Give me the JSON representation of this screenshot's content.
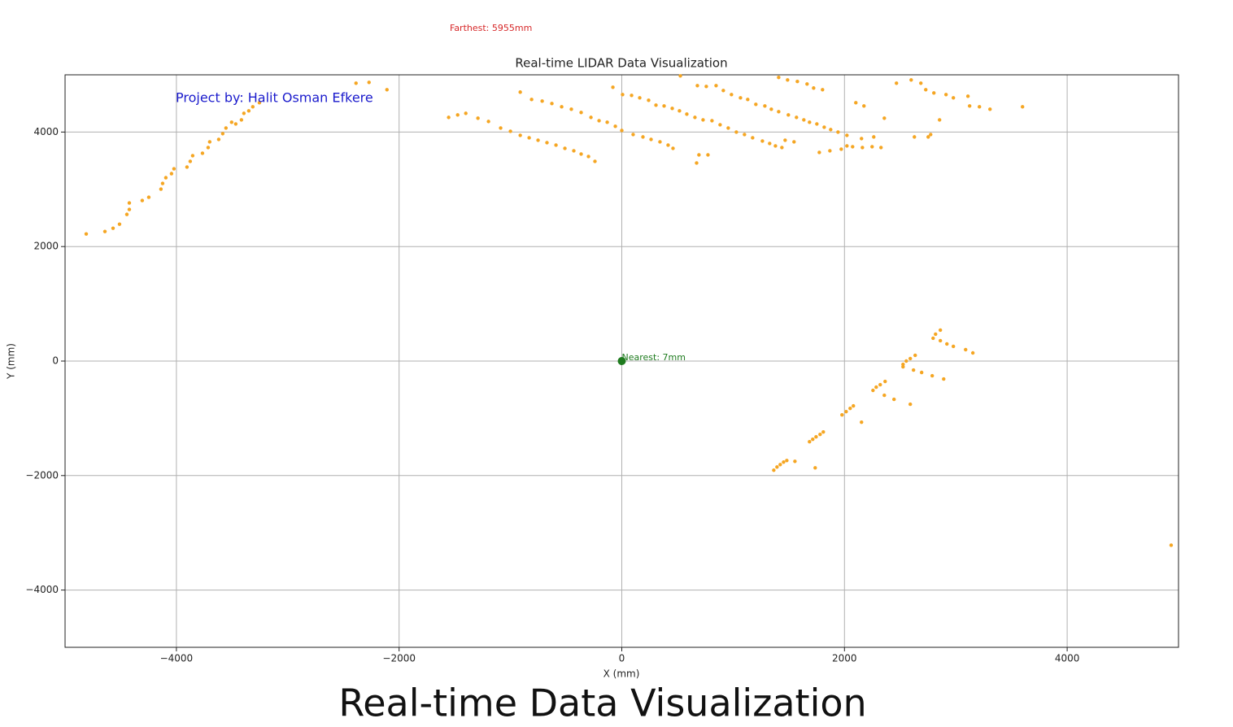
{
  "chart_data": {
    "type": "scatter",
    "title": "Real-time LIDAR Data Visualization",
    "farthest_label": "Farthest: 5955mm",
    "annotation": "Project by: Halit Osman Efkere",
    "xlabel": "X (mm)",
    "ylabel": "Y (mm)",
    "xlim": [
      -5000,
      5000
    ],
    "ylim": [
      -5000,
      5000
    ],
    "xticks": [
      {
        "value": -4000,
        "label": "−4000"
      },
      {
        "value": -2000,
        "label": "−2000"
      },
      0,
      2000,
      4000
    ],
    "yticks": [
      {
        "value": -4000,
        "label": "−4000"
      },
      {
        "value": -2000,
        "label": "−2000"
      },
      0,
      2000,
      4000
    ],
    "grid": true,
    "points": {
      "color": "#f5a623",
      "x": [
        -4810,
        -4642,
        -4569,
        -4511,
        -4445,
        -4423,
        -4423,
        -4307,
        -4248,
        -4139,
        -4124,
        -4095,
        -4044,
        -4022,
        -3905,
        -3876,
        -3854,
        -3766,
        -3715,
        -3701,
        -3620,
        -3584,
        -3555,
        -3504,
        -3467,
        -3416,
        -3394,
        -3350,
        -3314,
        -3255,
        -2387,
        -2270,
        -2109,
        -1555,
        -1474,
        -1401,
        -1292,
        -1197,
        -1088,
        -1000,
        -912,
        -832,
        -752,
        -672,
        -591,
        -511,
        -431,
        -365,
        -299,
        -241,
        -912,
        -810,
        -715,
        -628,
        -540,
        -453,
        -365,
        -277,
        -204,
        -131,
        -80,
        -58,
        0,
        7,
        88,
        102,
        161,
        190,
        241,
        263,
        307,
        343,
        380,
        416,
        453,
        460,
        518,
        526,
        584,
        657,
        672,
        679,
        693,
        730,
        759,
        774,
        810,
        847,
        883,
        912,
        956,
        985,
        1029,
        1066,
        1102,
        1131,
        1175,
        1204,
        1263,
        1285,
        1328,
        1343,
        1380,
        1409,
        1409,
        1438,
        1467,
        1489,
        1496,
        1547,
        1569,
        1577,
        1635,
        1664,
        1686,
        1723,
        1752,
        1774,
        1803,
        1818,
        1869,
        1876,
        1942,
        1971,
        2022,
        2022,
        2073,
        2102,
        2153,
        2175,
        2161,
        2248,
        2263,
        2328,
        2358,
        2467,
        2599,
        2628,
        2686,
        2730,
        2752,
        2774,
        2803,
        2854,
        2912,
        2978,
        3109,
        3124,
        3212,
        3307,
        3599,
        2861,
        2818,
        2796,
        2861,
        2920,
        2978,
        3088,
        3153,
        2635,
        2591,
        2555,
        2526,
        2526,
        2620,
        2693,
        2788,
        2891,
        2365,
        2321,
        2285,
        2256,
        2358,
        2445,
        2591,
        2080,
        2051,
        2015,
        1978,
        2153,
        1810,
        1781,
        1745,
        1715,
        1686,
        1482,
        1453,
        1423,
        1394,
        1365,
        1555,
        1737,
        4934
      ],
      "y": [
        2221,
        2263,
        2320,
        2391,
        2562,
        2648,
        2762,
        2804,
        2861,
        3004,
        3103,
        3203,
        3274,
        3359,
        3388,
        3488,
        3587,
        3630,
        3730,
        3829,
        3872,
        3972,
        4071,
        4171,
        4142,
        4213,
        4327,
        4370,
        4441,
        4512,
        4854,
        4868,
        4740,
        4256,
        4299,
        4327,
        4242,
        4185,
        4071,
        4014,
        3943,
        3900,
        3858,
        3815,
        3772,
        3715,
        3673,
        3616,
        3573,
        3488,
        4698,
        4569,
        4541,
        4498,
        4441,
        4399,
        4342,
        4256,
        4199,
        4171,
        4783,
        4100,
        4028,
        4655,
        4641,
        3957,
        4598,
        3915,
        4555,
        3872,
        4470,
        3829,
        4456,
        3772,
        4413,
        3715,
        4370,
        4982,
        4313,
        4256,
        3459,
        4811,
        3601,
        4213,
        4797,
        3601,
        4199,
        4811,
        4128,
        4726,
        4071,
        4655,
        4000,
        4598,
        3957,
        4569,
        3900,
        4484,
        3843,
        4456,
        3801,
        4399,
        3758,
        4356,
        4954,
        3730,
        3858,
        4911,
        4299,
        3829,
        4256,
        4883,
        4213,
        4840,
        4171,
        4769,
        4142,
        3644,
        4740,
        4085,
        3673,
        4043,
        4000,
        3701,
        3758,
        3943,
        3744,
        4512,
        3886,
        4456,
        3730,
        3744,
        3915,
        3730,
        4242,
        4854,
        4911,
        3915,
        4854,
        4740,
        3915,
        3957,
        4683,
        4213,
        4655,
        4598,
        4626,
        4456,
        4441,
        4399,
        4441,
        541,
        470,
        399,
        356,
        299,
        256,
        199,
        142,
        100,
        43,
        0,
        -57,
        -100,
        -157,
        -199,
        -256,
        -313,
        -356,
        -413,
        -456,
        -512,
        -598,
        -669,
        -754,
        -783,
        -826,
        -883,
        -940,
        -1068,
        -1238,
        -1281,
        -1324,
        -1367,
        -1409,
        -1737,
        -1765,
        -1808,
        -1851,
        -1907,
        -1751,
        -1865,
        -3217
      ]
    },
    "nearest": {
      "x": 0,
      "y": 0,
      "color": "#1e7b1e",
      "label": "Nearest: 7mm"
    }
  },
  "caption": "Real-time Data Visualization"
}
